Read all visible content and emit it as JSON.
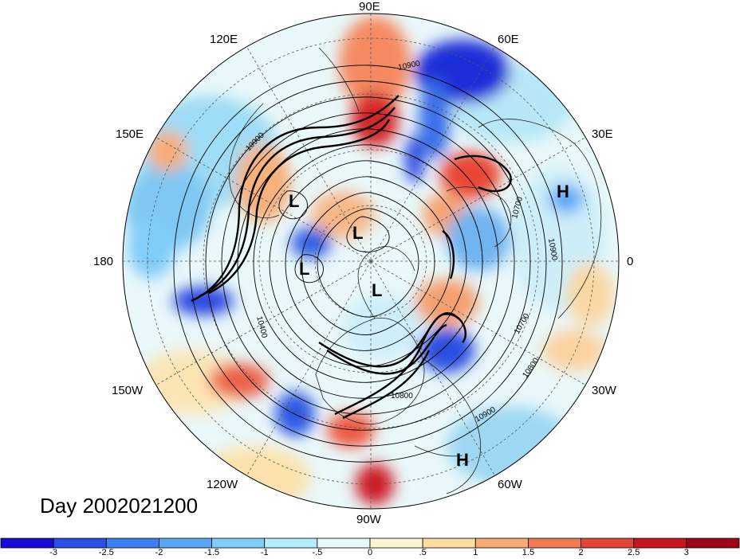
{
  "map": {
    "projection": "north-polar-stereographic",
    "longitude_labels": [
      "90E",
      "60E",
      "30E",
      "0",
      "30W",
      "60W",
      "90W",
      "120W",
      "150W",
      "180",
      "150E",
      "120E"
    ],
    "contour_labels": [
      "10900",
      "10900",
      "10700",
      "10900",
      "10700",
      "10800",
      "10900",
      "10400",
      "10800"
    ],
    "pressure_markers": [
      "L",
      "L",
      "L",
      "L",
      "H",
      "H"
    ]
  },
  "title": "Day 2002021200",
  "colorbar": {
    "colors": [
      "#1a0ad6",
      "#2b4fe6",
      "#3e7ff0",
      "#5aa6f5",
      "#7fcdf9",
      "#b4ecfb",
      "#e6fbfb",
      "#fcf6d2",
      "#fcdca0",
      "#f7ac74",
      "#f17a53",
      "#e54536",
      "#c8141f",
      "#a00516"
    ],
    "labels": [
      "-3",
      "-2.5",
      "-2",
      "-1.5",
      "-1",
      "-.5",
      "0",
      ".5",
      "1",
      "1.5",
      "2",
      "2.5",
      "3"
    ]
  }
}
